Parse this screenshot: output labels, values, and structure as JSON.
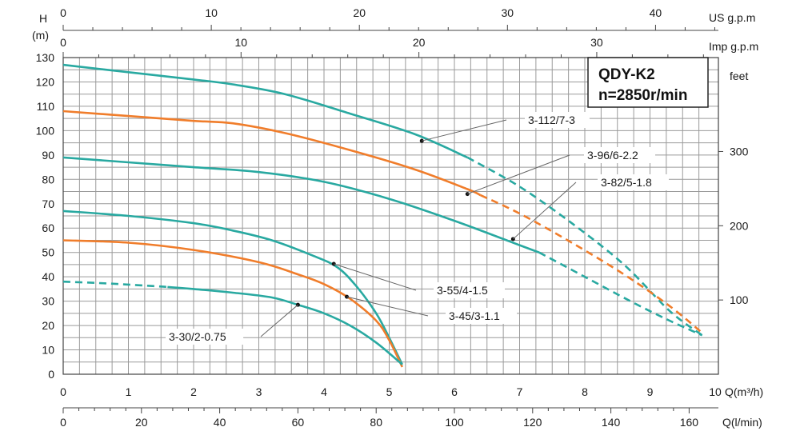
{
  "chart_data": {
    "type": "line",
    "title": "QDY-K2",
    "subtitle": "n=2850r/min",
    "ylabel": "H",
    "ylabel_unit": "(m)",
    "ylim": [
      0,
      130
    ],
    "y_ticks": [
      "0",
      "10",
      "20",
      "30",
      "40",
      "50",
      "60",
      "70",
      "80",
      "90",
      "100",
      "110",
      "120",
      "130"
    ],
    "xlabel": "Q(m³/h)",
    "xlim": [
      0,
      9.8
    ],
    "x_ticks": [
      "0",
      "1",
      "2",
      "3",
      "4",
      "5",
      "6",
      "7",
      "8",
      "9",
      "10"
    ],
    "x_secondary_bottom": {
      "label": "Q(l/min)",
      "ticks": [
        "0",
        "20",
        "40",
        "60",
        "80",
        "100",
        "120",
        "140",
        "160"
      ]
    },
    "x_top_us": {
      "label": "US g.p.m",
      "ticks": [
        "0",
        "10",
        "20",
        "30",
        "40"
      ]
    },
    "x_top_imp": {
      "label": "Imp g.p.m",
      "ticks": [
        "0",
        "10",
        "20",
        "30"
      ]
    },
    "y_right": {
      "label": "feet",
      "ticks": [
        "100",
        "200",
        "300"
      ]
    },
    "colors": {
      "teal": "#29a9a1",
      "orange": "#f07d2b",
      "grid": "#9a9a9a",
      "leader": "#666666"
    },
    "series": [
      {
        "name": "3-112/7-3",
        "color": "teal",
        "x": [
          0,
          1,
          2,
          2.6,
          3.4,
          4.4,
          5.4,
          6.2,
          7.0,
          7.8,
          8.6,
          9.3,
          9.8
        ],
        "y": [
          127,
          124,
          121,
          119,
          115,
          107,
          98.5,
          89,
          77,
          62,
          45,
          26,
          16
        ],
        "solid_until": 6.2
      },
      {
        "name": "3-96/6-2.2",
        "color": "orange",
        "x": [
          0,
          1,
          2,
          2.6,
          3.4,
          4.4,
          5.4,
          6.2,
          7.0,
          7.8,
          8.6,
          9.3,
          9.8
        ],
        "y": [
          108,
          106,
          104,
          103,
          99,
          92,
          84,
          76,
          66,
          54,
          41,
          28,
          17
        ],
        "solid_until": 6.4
      },
      {
        "name": "3-82/5-1.8",
        "color": "teal",
        "x": [
          0,
          1,
          2,
          3,
          4,
          5,
          6,
          7,
          7.3,
          8.0,
          8.7,
          9.3,
          9.8
        ],
        "y": [
          89,
          87,
          85,
          83,
          79,
          72,
          63,
          53,
          50,
          40,
          30,
          22,
          16
        ],
        "solid_until": 7.3
      },
      {
        "name": "3-55/4-1.5",
        "color": "teal",
        "x": [
          0,
          1,
          2,
          2.6,
          3.2,
          3.8,
          4.2,
          4.5,
          4.8,
          5.0,
          5.2
        ],
        "y": [
          67,
          65,
          62,
          59,
          55,
          49,
          44,
          36,
          25,
          15,
          4
        ],
        "solid_until": 5.2
      },
      {
        "name": "3-45/3-1.1",
        "color": "orange",
        "x": [
          0,
          1,
          2,
          3,
          3.6,
          4.0,
          4.4,
          4.8,
          5.0,
          5.2
        ],
        "y": [
          55,
          54,
          51,
          46,
          41,
          37,
          31,
          22,
          14,
          3
        ],
        "solid_until": 5.2
      },
      {
        "name": "3-30/2-0.75",
        "color": "teal",
        "x": [
          0,
          0.5,
          1,
          1.5,
          2.0,
          2.6,
          3.2,
          3.6,
          4.0,
          4.4,
          4.8,
          5.2
        ],
        "y": [
          38,
          37.5,
          36.8,
          36,
          35,
          33.5,
          31.5,
          28.5,
          25,
          20,
          13,
          4
        ],
        "dashed_until": 1.6,
        "solid_until": 5.2
      }
    ],
    "annotations": [
      {
        "label": "3-112/7-3",
        "point": [
          5.5,
          95.8
        ],
        "label_anchor": "upper-right"
      },
      {
        "label": "3-96/6-2.2",
        "point": [
          6.2,
          74
        ],
        "label_anchor": "right"
      },
      {
        "label": "3-82/5-1.8",
        "point": [
          6.9,
          55.5
        ],
        "label_anchor": "right"
      },
      {
        "label": "3-55/4-1.5",
        "point": [
          4.15,
          45.3
        ],
        "label_anchor": "lower-right"
      },
      {
        "label": "3-45/3-1.1",
        "point": [
          4.35,
          31.8
        ],
        "label_anchor": "lower-right"
      },
      {
        "label": "3-30/2-0.75",
        "point": [
          3.6,
          28.5
        ],
        "label_anchor": "lower-left"
      }
    ]
  }
}
